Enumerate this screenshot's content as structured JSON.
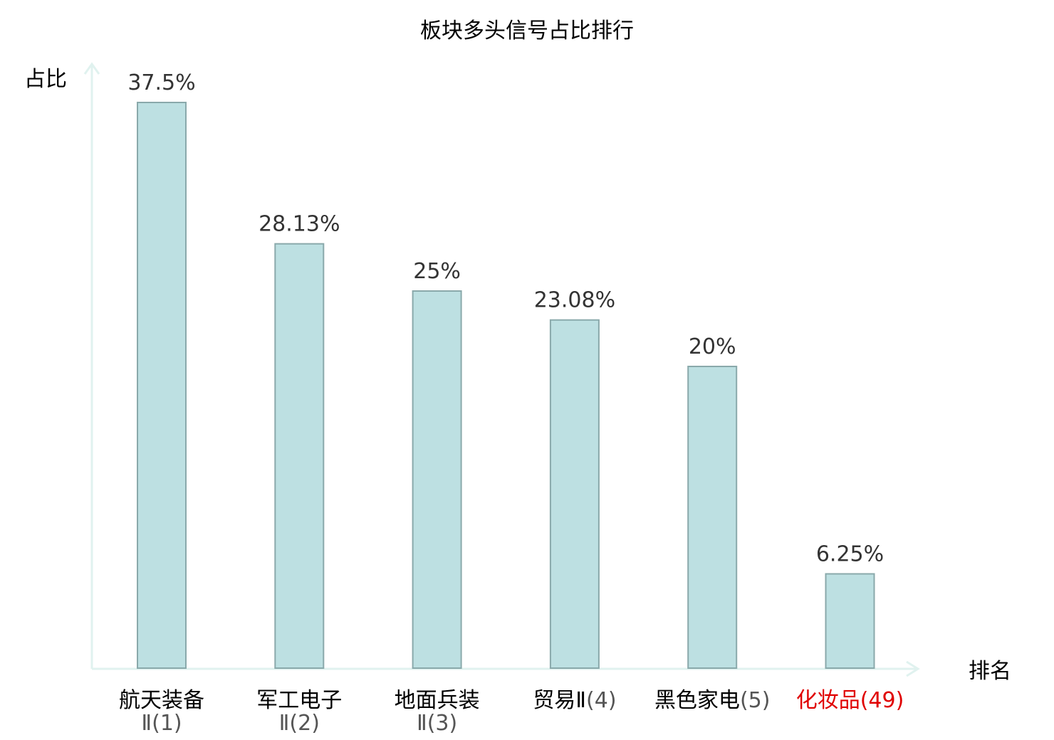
{
  "chart_data": {
    "type": "bar",
    "title": "板块多头信号占比排行",
    "ylabel": "占比",
    "xlabel": "排名",
    "ylim": [
      0,
      37.5
    ],
    "grid": false,
    "colors": {
      "bar_fill": "#bde0e2",
      "bar_stroke": "#8aa9ab",
      "axis": "#e0f2ef",
      "highlight": "#e00000",
      "label": "#333333",
      "rank": "#555555"
    },
    "categories": [
      {
        "name": "航天装备",
        "name2": "Ⅱ",
        "rank": "(1)",
        "highlight": false
      },
      {
        "name": "军工电子",
        "name2": "Ⅱ",
        "rank": "(2)",
        "highlight": false
      },
      {
        "name": "地面兵装",
        "name2": "Ⅱ",
        "rank": "(3)",
        "highlight": false
      },
      {
        "name": "贸易Ⅱ",
        "name2": "",
        "rank": "(4)",
        "highlight": false
      },
      {
        "name": "黑色家电",
        "name2": "",
        "rank": "(5)",
        "highlight": false
      },
      {
        "name": "化妆品",
        "name2": "",
        "rank": "(49)",
        "highlight": true
      }
    ],
    "values": [
      37.5,
      28.13,
      25,
      23.08,
      20,
      6.25
    ],
    "value_labels": [
      "37.5%",
      "28.13%",
      "25%",
      "23.08%",
      "20%",
      "6.25%"
    ]
  }
}
